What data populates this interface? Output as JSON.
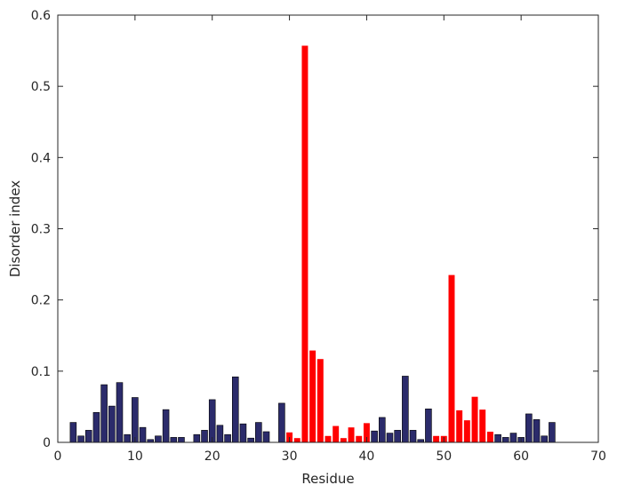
{
  "chart_data": {
    "type": "bar",
    "xlabel": "Residue",
    "ylabel": "Disorder index",
    "xlim": [
      0,
      70
    ],
    "ylim": [
      0,
      0.6
    ],
    "xticks": [
      "0",
      "10",
      "20",
      "30",
      "40",
      "50",
      "60",
      "70"
    ],
    "yticks": [
      "0",
      "0.1",
      "0.2",
      "0.3",
      "0.4",
      "0.5",
      "0.6"
    ],
    "grid": false,
    "colors": {
      "ordered": "#2b2b6b",
      "disordered": "#ff0000",
      "edge": "#000000"
    },
    "bars": [
      {
        "x": 2,
        "y": 0.028,
        "group": "ordered"
      },
      {
        "x": 3,
        "y": 0.009,
        "group": "ordered"
      },
      {
        "x": 4,
        "y": 0.017,
        "group": "ordered"
      },
      {
        "x": 5,
        "y": 0.042,
        "group": "ordered"
      },
      {
        "x": 6,
        "y": 0.081,
        "group": "ordered"
      },
      {
        "x": 7,
        "y": 0.051,
        "group": "ordered"
      },
      {
        "x": 8,
        "y": 0.084,
        "group": "ordered"
      },
      {
        "x": 9,
        "y": 0.011,
        "group": "ordered"
      },
      {
        "x": 10,
        "y": 0.063,
        "group": "ordered"
      },
      {
        "x": 11,
        "y": 0.021,
        "group": "ordered"
      },
      {
        "x": 12,
        "y": 0.004,
        "group": "ordered"
      },
      {
        "x": 13,
        "y": 0.009,
        "group": "ordered"
      },
      {
        "x": 14,
        "y": 0.046,
        "group": "ordered"
      },
      {
        "x": 15,
        "y": 0.007,
        "group": "ordered"
      },
      {
        "x": 16,
        "y": 0.007,
        "group": "ordered"
      },
      {
        "x": 18,
        "y": 0.011,
        "group": "ordered"
      },
      {
        "x": 19,
        "y": 0.017,
        "group": "ordered"
      },
      {
        "x": 20,
        "y": 0.06,
        "group": "ordered"
      },
      {
        "x": 21,
        "y": 0.024,
        "group": "ordered"
      },
      {
        "x": 22,
        "y": 0.011,
        "group": "ordered"
      },
      {
        "x": 23,
        "y": 0.092,
        "group": "ordered"
      },
      {
        "x": 24,
        "y": 0.026,
        "group": "ordered"
      },
      {
        "x": 25,
        "y": 0.006,
        "group": "ordered"
      },
      {
        "x": 26,
        "y": 0.028,
        "group": "ordered"
      },
      {
        "x": 27,
        "y": 0.015,
        "group": "ordered"
      },
      {
        "x": 29,
        "y": 0.055,
        "group": "ordered"
      },
      {
        "x": 30,
        "y": 0.014,
        "group": "disordered"
      },
      {
        "x": 31,
        "y": 0.006,
        "group": "disordered"
      },
      {
        "x": 32,
        "y": 0.557,
        "group": "disordered"
      },
      {
        "x": 33,
        "y": 0.129,
        "group": "disordered"
      },
      {
        "x": 34,
        "y": 0.117,
        "group": "disordered"
      },
      {
        "x": 35,
        "y": 0.009,
        "group": "disordered"
      },
      {
        "x": 36,
        "y": 0.023,
        "group": "disordered"
      },
      {
        "x": 37,
        "y": 0.006,
        "group": "disordered"
      },
      {
        "x": 38,
        "y": 0.021,
        "group": "disordered"
      },
      {
        "x": 39,
        "y": 0.009,
        "group": "disordered"
      },
      {
        "x": 40,
        "y": 0.027,
        "group": "disordered"
      },
      {
        "x": 41,
        "y": 0.016,
        "group": "ordered"
      },
      {
        "x": 42,
        "y": 0.035,
        "group": "ordered"
      },
      {
        "x": 43,
        "y": 0.013,
        "group": "ordered"
      },
      {
        "x": 44,
        "y": 0.017,
        "group": "ordered"
      },
      {
        "x": 45,
        "y": 0.093,
        "group": "ordered"
      },
      {
        "x": 46,
        "y": 0.017,
        "group": "ordered"
      },
      {
        "x": 47,
        "y": 0.004,
        "group": "ordered"
      },
      {
        "x": 48,
        "y": 0.047,
        "group": "ordered"
      },
      {
        "x": 49,
        "y": 0.009,
        "group": "disordered"
      },
      {
        "x": 50,
        "y": 0.009,
        "group": "disordered"
      },
      {
        "x": 51,
        "y": 0.235,
        "group": "disordered"
      },
      {
        "x": 52,
        "y": 0.045,
        "group": "disordered"
      },
      {
        "x": 53,
        "y": 0.031,
        "group": "disordered"
      },
      {
        "x": 54,
        "y": 0.064,
        "group": "disordered"
      },
      {
        "x": 55,
        "y": 0.046,
        "group": "disordered"
      },
      {
        "x": 56,
        "y": 0.015,
        "group": "disordered"
      },
      {
        "x": 57,
        "y": 0.011,
        "group": "ordered"
      },
      {
        "x": 58,
        "y": 0.007,
        "group": "ordered"
      },
      {
        "x": 59,
        "y": 0.013,
        "group": "ordered"
      },
      {
        "x": 60,
        "y": 0.007,
        "group": "ordered"
      },
      {
        "x": 61,
        "y": 0.04,
        "group": "ordered"
      },
      {
        "x": 62,
        "y": 0.032,
        "group": "ordered"
      },
      {
        "x": 63,
        "y": 0.009,
        "group": "ordered"
      },
      {
        "x": 64,
        "y": 0.028,
        "group": "ordered"
      }
    ]
  }
}
